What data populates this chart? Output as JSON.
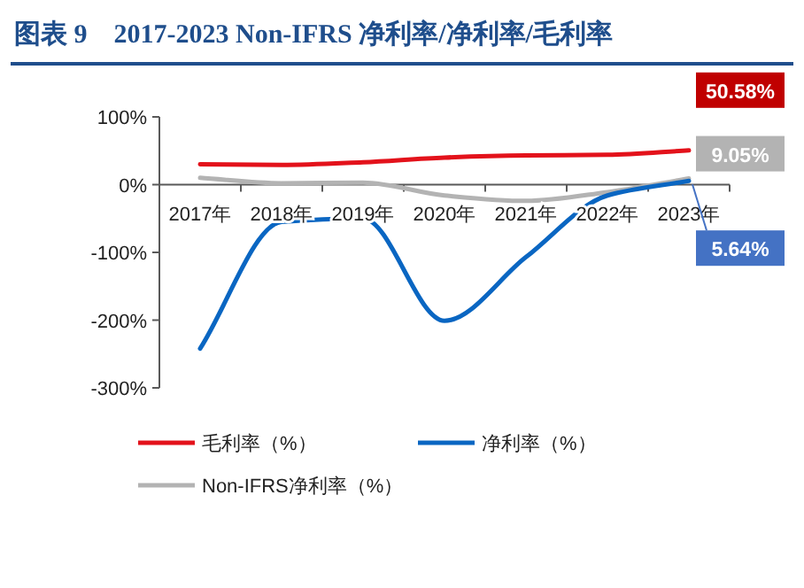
{
  "chart_data": {
    "type": "line",
    "title": "图表 9　2017-2023 Non-IFRS 净利率/净利率/毛利率",
    "categories": [
      "2017年",
      "2018年",
      "2019年",
      "2020年",
      "2021年",
      "2022年",
      "2023年"
    ],
    "series": [
      {
        "name": "毛利率（%）",
        "color": "#e3121b",
        "values": [
          30,
          29,
          33,
          40,
          43,
          44,
          50.58
        ],
        "value_labels": [
          null,
          null,
          null,
          null,
          null,
          null,
          "50.58%"
        ]
      },
      {
        "name": "净利率（%）",
        "color": "#0a66c2",
        "values": [
          -242,
          -55,
          -50,
          -201,
          -107,
          -16,
          5.64
        ],
        "value_labels": [
          null,
          null,
          null,
          null,
          null,
          null,
          "5.64%"
        ]
      },
      {
        "name": "Non-IFRS净利率（%）",
        "color": "#b3b3b3",
        "values": [
          10,
          2,
          3,
          -16,
          -24,
          -11,
          9.05
        ],
        "value_labels": [
          null,
          null,
          null,
          null,
          null,
          null,
          "9.05%"
        ]
      }
    ],
    "ylim": [
      -300,
      100
    ],
    "yticks": [
      {
        "value": -300,
        "label": "-300%"
      },
      {
        "value": -200,
        "label": "-200%"
      },
      {
        "value": -100,
        "label": "-100%"
      },
      {
        "value": 0,
        "label": "0%"
      },
      {
        "value": 100,
        "label": "100%"
      }
    ],
    "grid": false,
    "legend": "bottom",
    "marker": "none",
    "line_style": "solid"
  }
}
